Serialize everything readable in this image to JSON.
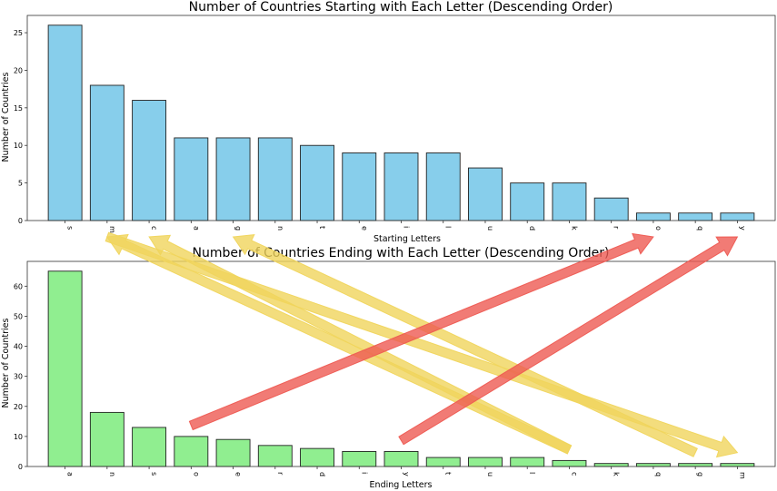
{
  "chart_data": [
    {
      "type": "bar",
      "title": "Number of Countries Starting with Each Letter (Descending Order)",
      "xlabel": "Starting Letters",
      "ylabel": "Number of Countries",
      "categories": [
        "s",
        "m",
        "c",
        "a",
        "g",
        "n",
        "t",
        "e",
        "i",
        "l",
        "u",
        "d",
        "k",
        "r",
        "o",
        "q",
        "y"
      ],
      "values": [
        26,
        18,
        16,
        11,
        11,
        11,
        10,
        9,
        9,
        9,
        7,
        5,
        5,
        3,
        1,
        1,
        1
      ],
      "ylim": [
        0,
        27.3
      ],
      "yticks": [
        0,
        5,
        10,
        15,
        20,
        25
      ],
      "bar_color": "#87ceeb",
      "grid": false
    },
    {
      "type": "bar",
      "title": "Number of Countries Ending with Each Letter (Descending Order)",
      "xlabel": "Ending Letters",
      "ylabel": "Number of Countries",
      "categories": [
        "a",
        "n",
        "s",
        "o",
        "e",
        "r",
        "d",
        "i",
        "y",
        "t",
        "u",
        "l",
        "c",
        "k",
        "q",
        "g",
        "m"
      ],
      "values": [
        65,
        18,
        13,
        10,
        9,
        7,
        6,
        5,
        5,
        3,
        3,
        3,
        2,
        1,
        1,
        1,
        1
      ],
      "ylim": [
        0,
        68.25
      ],
      "yticks": [
        0,
        10,
        20,
        30,
        40,
        50,
        60
      ],
      "bar_color": "#90ee90",
      "grid": false
    }
  ],
  "annotations": {
    "arrows": [
      {
        "color": "#f0d55c",
        "from": {
          "chart": 1,
          "category": "c"
        },
        "to": {
          "chart": 0,
          "category": "m"
        }
      },
      {
        "color": "#f0d55c",
        "from": {
          "chart": 1,
          "category": "c"
        },
        "to": {
          "chart": 0,
          "category": "c"
        }
      },
      {
        "color": "#f0d55c",
        "from": {
          "chart": 1,
          "category": "g"
        },
        "to": {
          "chart": 0,
          "category": "g"
        }
      },
      {
        "color": "#f0d55c",
        "from": {
          "chart": 0,
          "category": "m"
        },
        "to": {
          "chart": 1,
          "category": "m"
        }
      },
      {
        "color": "#ee5a52",
        "from": {
          "chart": 1,
          "category": "o"
        },
        "to": {
          "chart": 0,
          "category": "o"
        }
      },
      {
        "color": "#ee5a52",
        "from": {
          "chart": 1,
          "category": "y"
        },
        "to": {
          "chart": 0,
          "category": "y"
        }
      }
    ]
  }
}
